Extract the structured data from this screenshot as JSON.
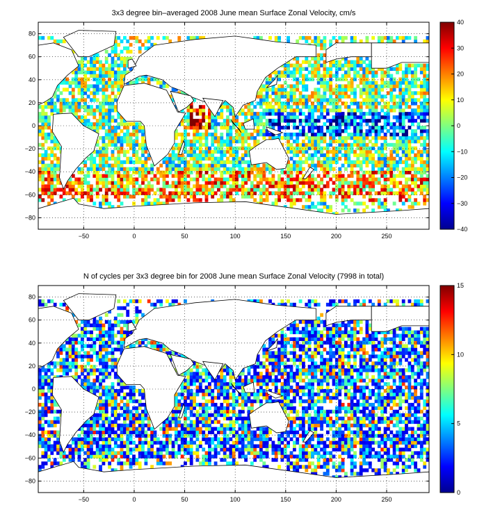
{
  "chart_data": [
    {
      "type": "heatmap",
      "title": "3x3 degree bin–averaged 2008 June mean Surface Zonal Velocity, cm/s",
      "xlabel": "",
      "ylabel": "",
      "xlim": [
        -95,
        292
      ],
      "ylim": [
        -90,
        90
      ],
      "xticks": [
        -50,
        0,
        50,
        100,
        150,
        200,
        250
      ],
      "yticks": [
        -80,
        -60,
        -40,
        -20,
        0,
        20,
        40,
        60,
        80
      ],
      "grid": true,
      "colorbar": {
        "min": -40,
        "max": 40,
        "ticks": [
          -40,
          -30,
          -20,
          -10,
          0,
          10,
          20,
          30,
          40
        ],
        "colormap": "jet"
      },
      "bin_size_deg": 3
    },
    {
      "type": "heatmap",
      "title": "N of cycles per 3x3 degree bin for 2008 June mean Surface Zonal Velocity (7998 in total)",
      "xlabel": "",
      "ylabel": "",
      "xlim": [
        -95,
        292
      ],
      "ylim": [
        -90,
        90
      ],
      "xticks": [
        -50,
        0,
        50,
        100,
        150,
        200,
        250
      ],
      "yticks": [
        -80,
        -60,
        -40,
        -20,
        0,
        20,
        40,
        60,
        80
      ],
      "grid": true,
      "colorbar": {
        "min": 0,
        "max": 15,
        "ticks": [
          0,
          5,
          10,
          15
        ],
        "colormap": "jet"
      },
      "bin_size_deg": 3
    }
  ]
}
